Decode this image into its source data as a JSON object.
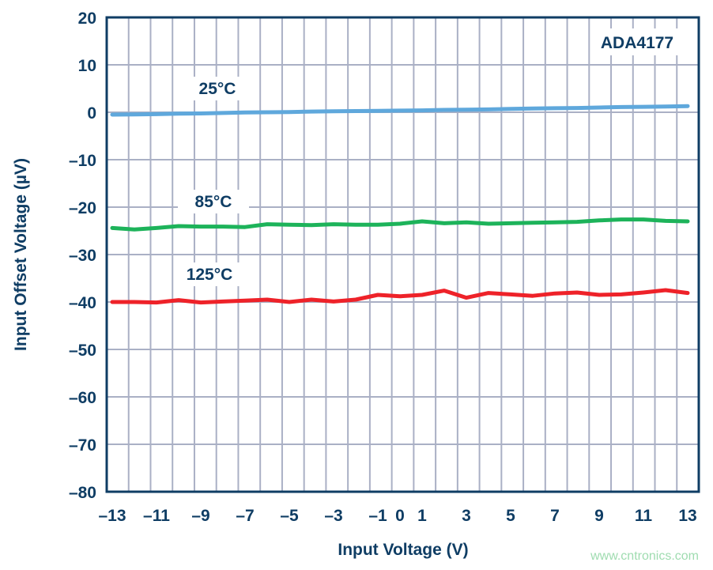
{
  "chart_data": {
    "type": "line",
    "title": "",
    "annotation": "ADA4177",
    "xlabel": "Input Voltage (V)",
    "ylabel": "Input Offset Voltage (µV)",
    "xlim": [
      -13.25,
      13.4
    ],
    "ylim": [
      -80,
      20
    ],
    "grid": true,
    "x_ticks": [
      -13,
      -11,
      -9,
      -7,
      -5,
      -3,
      -1,
      0,
      1,
      3,
      5,
      7,
      9,
      11,
      13
    ],
    "x_tick_labels": [
      "–13",
      "–11",
      "–9",
      "–7",
      "–5",
      "–3",
      "–1",
      "0",
      "1",
      "3",
      "5",
      "7",
      "9",
      "11",
      "13"
    ],
    "y_ticks": [
      20,
      10,
      0,
      -10,
      -20,
      -30,
      -40,
      -50,
      -60,
      -70,
      -80
    ],
    "y_tick_labels": [
      "20",
      "10",
      "0",
      "–10",
      "–20",
      "–30",
      "–40",
      "–50",
      "–60",
      "–70",
      "–80"
    ],
    "x": [
      -13,
      -12,
      -11,
      -10,
      -9,
      -8,
      -7,
      -6,
      -5,
      -4,
      -3,
      -2,
      -1,
      0,
      1,
      2,
      3,
      4,
      5,
      6,
      7,
      8,
      9,
      10,
      11,
      12,
      13
    ],
    "series": [
      {
        "name": "25°C",
        "color": "#5fa8dc",
        "values": [
          -0.5,
          -0.45,
          -0.4,
          -0.3,
          -0.25,
          -0.15,
          -0.05,
          0.0,
          0.05,
          0.15,
          0.2,
          0.25,
          0.3,
          0.35,
          0.4,
          0.5,
          0.55,
          0.6,
          0.7,
          0.8,
          0.85,
          0.9,
          1.0,
          1.1,
          1.15,
          1.2,
          1.3
        ]
      },
      {
        "name": "85°C",
        "color": "#1db35a",
        "values": [
          -24.4,
          -24.7,
          -24.4,
          -24.0,
          -24.1,
          -24.1,
          -24.2,
          -23.6,
          -23.7,
          -23.8,
          -23.6,
          -23.7,
          -23.7,
          -23.5,
          -23.0,
          -23.4,
          -23.2,
          -23.5,
          -23.4,
          -23.3,
          -23.2,
          -23.1,
          -22.8,
          -22.6,
          -22.6,
          -22.9,
          -23.0
        ]
      },
      {
        "name": "125°C",
        "color": "#ee2229",
        "values": [
          -40.0,
          -40.0,
          -40.1,
          -39.6,
          -40.1,
          -39.9,
          -39.7,
          -39.5,
          -40.0,
          -39.5,
          -39.9,
          -39.5,
          -38.5,
          -38.8,
          -38.5,
          -37.6,
          -39.1,
          -38.1,
          -38.4,
          -38.7,
          -38.2,
          -38.0,
          -38.5,
          -38.4,
          -38.0,
          -37.5,
          -38.1
        ]
      }
    ]
  },
  "watermark": "www.cntronics.com"
}
